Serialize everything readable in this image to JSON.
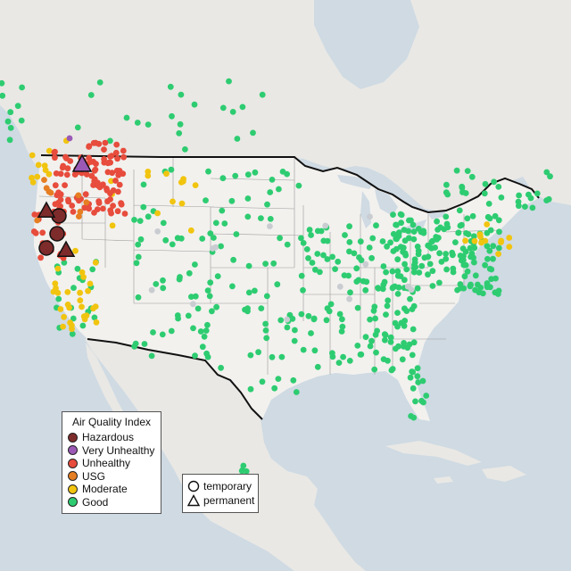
{
  "legend": {
    "title": "Air Quality Index",
    "categories": [
      {
        "label": "Hazardous",
        "color": "#7e2b2b"
      },
      {
        "label": "Very Unhealthy",
        "color": "#9b59b6"
      },
      {
        "label": "Unhealthy",
        "color": "#e74c3c"
      },
      {
        "label": "USG",
        "color": "#e67e22"
      },
      {
        "label": "Moderate",
        "color": "#f1c40f"
      },
      {
        "label": "Good",
        "color": "#2ecc71"
      }
    ]
  },
  "shape_legend": {
    "temporary": "temporary",
    "permanent": "permanent"
  },
  "colors": {
    "water": "#cfdae3",
    "land": "#e9e8e4",
    "us_land": "#f2f1ee",
    "border": "#111111",
    "state_lines": "#9a9a9a",
    "no_data": "#c9ccd1"
  }
}
